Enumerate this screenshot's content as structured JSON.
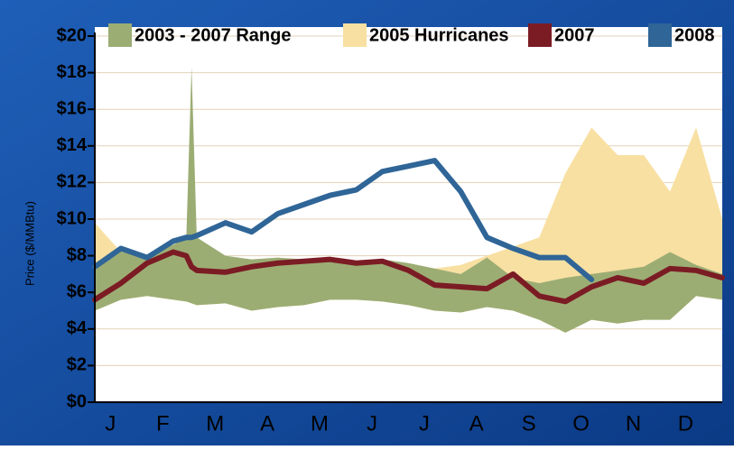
{
  "chart_data": {
    "type": "line",
    "y_label": "Price ($/MMBtu)",
    "x": [
      0,
      0.5,
      1,
      1.5,
      1.75,
      1.85,
      1.95,
      2.5,
      3,
      3.5,
      4,
      4.5,
      5,
      5.5,
      6,
      6.5,
      7,
      7.5,
      8,
      8.5,
      9,
      9.5,
      10,
      10.5,
      11,
      11.5,
      12
    ],
    "xlim": [
      0,
      12
    ],
    "xticks": [
      {
        "value": 0.3,
        "label": "J"
      },
      {
        "value": 1.3,
        "label": "F"
      },
      {
        "value": 2.3,
        "label": "M"
      },
      {
        "value": 3.3,
        "label": "A"
      },
      {
        "value": 4.3,
        "label": "M"
      },
      {
        "value": 5.3,
        "label": "J"
      },
      {
        "value": 6.3,
        "label": "J"
      },
      {
        "value": 7.3,
        "label": "A"
      },
      {
        "value": 8.3,
        "label": "S"
      },
      {
        "value": 9.3,
        "label": "O"
      },
      {
        "value": 10.3,
        "label": "N"
      },
      {
        "value": 11.3,
        "label": "D"
      }
    ],
    "ylim": [
      0,
      20
    ],
    "yticks": [
      {
        "value": 0,
        "label": "$0"
      },
      {
        "value": 2,
        "label": "$2"
      },
      {
        "value": 4,
        "label": "$4"
      },
      {
        "value": 6,
        "label": "$6"
      },
      {
        "value": 8,
        "label": "$8"
      },
      {
        "value": 10,
        "label": "$10"
      },
      {
        "value": 12,
        "label": "$12"
      },
      {
        "value": 14,
        "label": "$14"
      },
      {
        "value": 16,
        "label": "$16"
      },
      {
        "value": 18,
        "label": "$18"
      },
      {
        "value": 20,
        "label": "$20"
      }
    ],
    "grid": true,
    "series": [
      {
        "name": "2003 - 2007 Range",
        "type": "band",
        "color": "#9cad74",
        "values": [
          7.6,
          8.4,
          8.0,
          8.6,
          9.0,
          18.3,
          9.0,
          8.0,
          7.8,
          7.9,
          7.8,
          7.7,
          7.7,
          7.8,
          7.6,
          7.3,
          7.0,
          7.9,
          6.8,
          6.5,
          6.8,
          7.0,
          7.2,
          7.4,
          8.2,
          7.5,
          7.0
        ],
        "low": [
          5.0,
          5.6,
          5.8,
          5.6,
          5.5,
          5.4,
          5.3,
          5.4,
          5.0,
          5.2,
          5.3,
          5.6,
          5.6,
          5.5,
          5.3,
          5.0,
          4.9,
          5.2,
          5.0,
          4.5,
          3.8,
          4.5,
          4.3,
          4.5,
          4.5,
          5.8,
          5.6
        ]
      },
      {
        "name": "2005 Hurricanes",
        "type": "area",
        "color": "#f8e0a2",
        "values": [
          9.8,
          8.2,
          7.8,
          7.8,
          7.5,
          7.5,
          7.6,
          7.3,
          7.0,
          6.8,
          6.5,
          6.5,
          7.0,
          7.1,
          7.4,
          7.3,
          7.5,
          8.0,
          8.5,
          9.0,
          12.5,
          15.0,
          13.5,
          13.5,
          11.5,
          15.0,
          10.0
        ]
      },
      {
        "name": "2007",
        "type": "line",
        "color": "#7b1c24",
        "values": [
          5.6,
          6.5,
          7.6,
          8.2,
          8.0,
          7.4,
          7.2,
          7.1,
          7.4,
          7.6,
          7.7,
          7.8,
          7.6,
          7.7,
          7.2,
          6.4,
          6.3,
          6.2,
          7.0,
          5.8,
          5.5,
          6.3,
          6.8,
          6.5,
          7.3,
          7.2,
          6.8
        ]
      },
      {
        "name": "2008",
        "type": "line",
        "color": "#2f6597",
        "values": [
          7.4,
          8.4,
          7.9,
          8.8,
          9.0,
          9.0,
          9.1,
          9.8,
          9.3,
          10.3,
          10.8,
          11.3,
          11.6,
          12.6,
          12.9,
          13.2,
          11.5,
          9.0,
          8.4,
          7.9,
          7.9,
          6.7,
          null,
          null,
          null,
          null,
          null
        ]
      }
    ]
  }
}
